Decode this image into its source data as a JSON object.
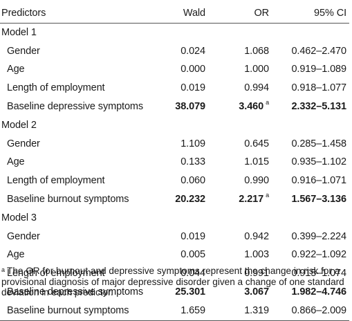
{
  "headers": {
    "predictors": "Predictors",
    "wald": "Wald",
    "or": "OR",
    "ci": "95% CI"
  },
  "rows": [
    {
      "type": "model",
      "label": "Model 1"
    },
    {
      "type": "data",
      "predictor": "Gender",
      "wald": "0.024",
      "or": "1.068",
      "ci": "0.462–2.470"
    },
    {
      "type": "data",
      "predictor": "Age",
      "wald": "0.000",
      "or": "1.000",
      "ci": "0.919–1.089"
    },
    {
      "type": "data",
      "predictor": "Length of employment",
      "wald": "0.019",
      "or": "0.994",
      "ci": "0.918–1.077"
    },
    {
      "type": "data",
      "predictor": "Baseline depressive symptoms",
      "wald": "38.079",
      "or": "3.460",
      "or_note": "a",
      "ci": "2.332–5.131",
      "bold": true
    },
    {
      "type": "model",
      "label": "Model 2"
    },
    {
      "type": "data",
      "predictor": "Gender",
      "wald": "1.109",
      "or": "0.645",
      "ci": "0.285–1.458"
    },
    {
      "type": "data",
      "predictor": "Age",
      "wald": "0.133",
      "or": "1.015",
      "ci": "0.935–1.102"
    },
    {
      "type": "data",
      "predictor": "Length of employment",
      "wald": "0.060",
      "or": "0.990",
      "ci": "0.916–1.071"
    },
    {
      "type": "data",
      "predictor": "Baseline burnout symptoms",
      "wald": "20.232",
      "or": "2.217",
      "or_note": "a",
      "ci": "1.567–3.136",
      "bold": true
    },
    {
      "type": "model",
      "label": "Model 3"
    },
    {
      "type": "data",
      "predictor": "Gender",
      "wald": "0.019",
      "or": "0.942",
      "ci": "0.399–2.224"
    },
    {
      "type": "data",
      "predictor": "Age",
      "wald": "0.005",
      "or": "1.003",
      "ci": "0.922–1.092"
    },
    {
      "type": "data",
      "predictor": "Length of employment",
      "wald": "0.044",
      "or": "0.991",
      "ci": "0.915–1.074"
    },
    {
      "type": "data",
      "predictor": "Baseline depressive symptoms",
      "wald": "25.301",
      "or": "3.067",
      "ci": "1.982–4.746",
      "bold": true
    },
    {
      "type": "data",
      "predictor": "Baseline burnout symptoms",
      "wald": "1.659",
      "or": "1.319",
      "ci": "0.866–2.009"
    }
  ],
  "footnote": {
    "marker": "a",
    "text": "The OR for burnout and depressive symptoms represent the change in risk for a provisional diagnosis of major depressive disorder given a change of one standard deviation in each predictor."
  }
}
